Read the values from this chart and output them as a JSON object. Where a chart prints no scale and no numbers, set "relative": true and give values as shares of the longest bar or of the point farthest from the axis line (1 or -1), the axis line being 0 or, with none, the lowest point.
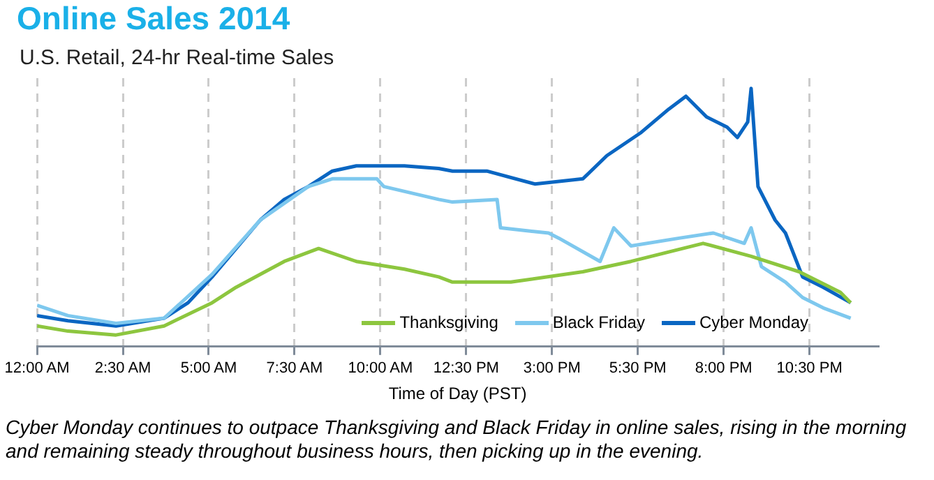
{
  "chart_data": {
    "type": "line",
    "title": "Online Sales 2014",
    "subtitle": "U.S. Retail, 24-hr Real-time Sales",
    "xlabel": "Time of Day (PST)",
    "annotations": [
      "Cyber Monday continues to outpace Thanksgiving and Black Friday in online sales, rising in the morning and remaining steady throughout business hours, then picking  up in the evening."
    ],
    "relative": true,
    "grid": "x",
    "legend": "bottom right",
    "marker": "none",
    "line_style": "solid",
    "xlim": [
      0,
      24.5
    ],
    "xticks": [
      {
        "value": 0,
        "label": "12:00 AM"
      },
      {
        "value": 2.5,
        "label": "2:30 AM"
      },
      {
        "value": 5,
        "label": "5:00 AM"
      },
      {
        "value": 7.5,
        "label": "7:30 AM"
      },
      {
        "value": 10,
        "label": "10:00 AM"
      },
      {
        "value": 12.5,
        "label": "12:30 PM"
      },
      {
        "value": 15,
        "label": "3:00 PM"
      },
      {
        "value": 17.5,
        "label": "5:30 PM"
      },
      {
        "value": 20,
        "label": "8:00 PM"
      },
      {
        "value": 22.5,
        "label": "10:30 PM"
      }
    ],
    "series": [
      {
        "name": "Thanksgiving",
        "color": "#8dc63f",
        "x": [
          0,
          0.9,
          2.3,
          3.7,
          5.1,
          5.8,
          6.5,
          7.2,
          8.2,
          9.3,
          10.7,
          11.7,
          12.1,
          13.8,
          15.9,
          17.3,
          19.4,
          20.8,
          22.2,
          23.4,
          23.7
        ],
        "values": [
          0.08,
          0.06,
          0.045,
          0.08,
          0.17,
          0.23,
          0.28,
          0.33,
          0.38,
          0.33,
          0.3,
          0.27,
          0.25,
          0.25,
          0.29,
          0.33,
          0.4,
          0.35,
          0.29,
          0.21,
          0.17
        ]
      },
      {
        "name": "Black Friday",
        "color": "#7ec8ee",
        "x": [
          0,
          0.9,
          2.3,
          3.7,
          5.1,
          6.5,
          7.9,
          8.6,
          9.9,
          10.1,
          11.7,
          12.1,
          13.4,
          13.5,
          14.9,
          15.2,
          16.4,
          16.8,
          17.3,
          18.7,
          19.7,
          20.6,
          20.8,
          21.1,
          21.8,
          22.3,
          22.9,
          23.7
        ],
        "values": [
          0.16,
          0.12,
          0.09,
          0.11,
          0.28,
          0.49,
          0.62,
          0.65,
          0.65,
          0.62,
          0.57,
          0.56,
          0.57,
          0.46,
          0.44,
          0.42,
          0.33,
          0.46,
          0.39,
          0.42,
          0.44,
          0.4,
          0.46,
          0.31,
          0.25,
          0.19,
          0.15,
          0.11
        ]
      },
      {
        "name": "Cyber Monday",
        "color": "#0a66c2",
        "x": [
          0,
          0.9,
          2.3,
          3.7,
          4.4,
          5.1,
          5.8,
          6.5,
          7.2,
          7.9,
          8.6,
          9.3,
          10.7,
          11.7,
          12.1,
          13.1,
          14.5,
          15.9,
          16.6,
          17.6,
          18.4,
          18.9,
          19.5,
          20.1,
          20.4,
          20.7,
          20.8,
          21,
          21.5,
          21.8,
          22.3,
          22.9,
          23.7
        ],
        "values": [
          0.12,
          0.1,
          0.08,
          0.11,
          0.17,
          0.27,
          0.38,
          0.49,
          0.57,
          0.62,
          0.68,
          0.7,
          0.7,
          0.69,
          0.68,
          0.68,
          0.63,
          0.65,
          0.74,
          0.83,
          0.92,
          0.97,
          0.89,
          0.85,
          0.81,
          0.87,
          1,
          0.62,
          0.49,
          0.44,
          0.27,
          0.23,
          0.17
        ]
      }
    ]
  }
}
